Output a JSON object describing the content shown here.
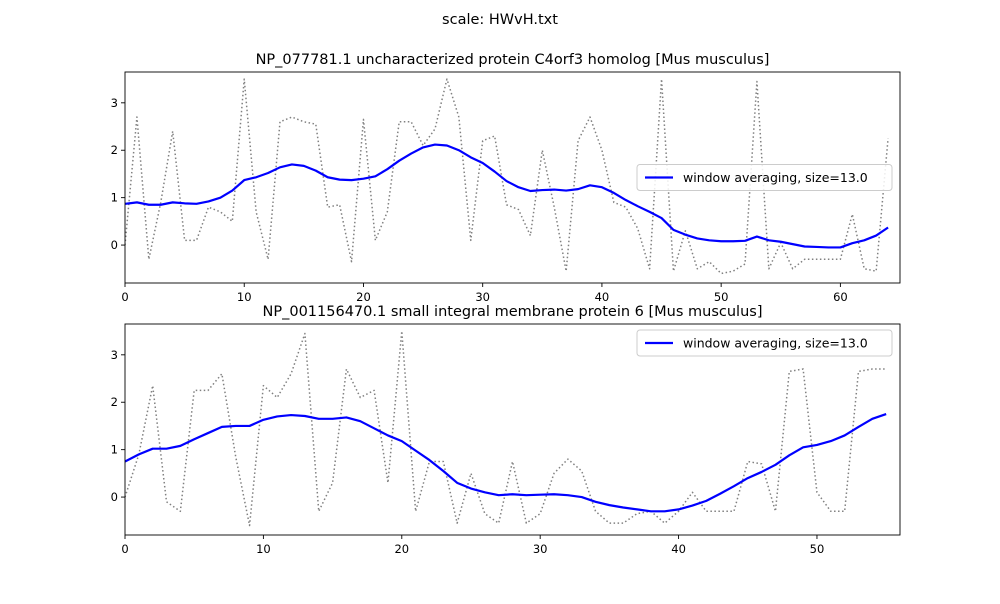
{
  "suptitle": "scale: HWvH.txt",
  "chart_data": [
    {
      "type": "line",
      "title": "NP_077781.1 uncharacterized protein C4orf3 homolog [Mus musculus]",
      "xlim": [
        0,
        65
      ],
      "ylim": [
        -0.8,
        3.65
      ],
      "xticks": [
        0,
        10,
        20,
        30,
        40,
        50,
        60
      ],
      "yticks": [
        0,
        1,
        2,
        3
      ],
      "grid": false,
      "legend_position": "right",
      "series": [
        {
          "name": "",
          "style": "dotted",
          "color": "#808080",
          "x": [
            0,
            1,
            2,
            3,
            4,
            5,
            6,
            7,
            8,
            9,
            10,
            11,
            12,
            13,
            14,
            15,
            16,
            17,
            18,
            19,
            20,
            21,
            22,
            23,
            24,
            25,
            26,
            27,
            28,
            29,
            30,
            31,
            32,
            33,
            34,
            35,
            36,
            37,
            38,
            39,
            40,
            41,
            42,
            43,
            44,
            45,
            46,
            47,
            48,
            49,
            50,
            51,
            52,
            53,
            54,
            55,
            56,
            57,
            58,
            59,
            60,
            61,
            62,
            63,
            64
          ],
          "values": [
            0,
            2.7,
            -0.3,
            0.9,
            2.4,
            0.1,
            0.1,
            0.8,
            0.7,
            0.5,
            3.5,
            0.7,
            -0.3,
            2.6,
            2.7,
            2.6,
            2.55,
            0.8,
            0.85,
            -0.35,
            2.65,
            0.1,
            0.7,
            2.6,
            2.6,
            2.1,
            2.45,
            3.5,
            2.7,
            0.1,
            2.2,
            2.3,
            0.85,
            0.75,
            0.2,
            2.0,
            0.8,
            -0.55,
            2.2,
            2.7,
            2.0,
            0.9,
            0.8,
            0.35,
            -0.5,
            3.5,
            -0.55,
            0.3,
            -0.5,
            -0.35,
            -0.6,
            -0.55,
            -0.4,
            3.45,
            -0.5,
            0.05,
            -0.5,
            -0.3,
            -0.3,
            -0.3,
            -0.3,
            0.65,
            -0.5,
            -0.55,
            2.25
          ]
        },
        {
          "name": "window averaging, size=13.0",
          "style": "solid",
          "color": "#0000ff",
          "x": [
            0,
            1,
            2,
            3,
            4,
            5,
            6,
            7,
            8,
            9,
            10,
            11,
            12,
            13,
            14,
            15,
            16,
            17,
            18,
            19,
            20,
            21,
            22,
            23,
            24,
            25,
            26,
            27,
            28,
            29,
            30,
            31,
            32,
            33,
            34,
            35,
            36,
            37,
            38,
            39,
            40,
            41,
            42,
            43,
            44,
            45,
            46,
            47,
            48,
            49,
            50,
            51,
            52,
            53,
            54,
            55,
            56,
            57,
            58,
            59,
            60,
            61,
            62,
            63,
            64
          ],
          "values": [
            0.87,
            0.9,
            0.85,
            0.85,
            0.9,
            0.88,
            0.87,
            0.92,
            1.0,
            1.15,
            1.37,
            1.43,
            1.52,
            1.64,
            1.7,
            1.67,
            1.57,
            1.43,
            1.38,
            1.37,
            1.4,
            1.45,
            1.6,
            1.78,
            1.93,
            2.06,
            2.12,
            2.1,
            2.0,
            1.85,
            1.73,
            1.55,
            1.35,
            1.22,
            1.14,
            1.16,
            1.17,
            1.15,
            1.18,
            1.26,
            1.22,
            1.1,
            0.95,
            0.82,
            0.7,
            0.57,
            0.32,
            0.22,
            0.14,
            0.1,
            0.08,
            0.08,
            0.09,
            0.18,
            0.1,
            0.07,
            0.02,
            -0.03,
            -0.04,
            -0.05,
            -0.05,
            0.04,
            0.1,
            0.2,
            0.37
          ]
        }
      ]
    },
    {
      "type": "line",
      "title": "NP_001156470.1 small integral membrane protein 6 [Mus musculus]",
      "xlim": [
        0,
        56
      ],
      "ylim": [
        -0.8,
        3.65
      ],
      "xticks": [
        0,
        10,
        20,
        30,
        40,
        50
      ],
      "yticks": [
        0,
        1,
        2,
        3
      ],
      "grid": false,
      "legend_position": "upper right",
      "series": [
        {
          "name": "",
          "style": "dotted",
          "color": "#808080",
          "x": [
            0,
            1,
            2,
            3,
            4,
            5,
            6,
            7,
            8,
            9,
            10,
            11,
            12,
            13,
            14,
            15,
            16,
            17,
            18,
            19,
            20,
            21,
            22,
            23,
            24,
            25,
            26,
            27,
            28,
            29,
            30,
            31,
            32,
            33,
            34,
            35,
            36,
            37,
            38,
            39,
            40,
            41,
            42,
            43,
            44,
            45,
            46,
            47,
            48,
            49,
            50,
            51,
            52,
            53,
            54,
            55
          ],
          "values": [
            0,
            0.9,
            2.35,
            -0.1,
            -0.3,
            2.25,
            2.25,
            2.6,
            0.85,
            -0.6,
            2.35,
            2.1,
            2.6,
            3.45,
            -0.3,
            0.3,
            2.7,
            2.1,
            2.25,
            0.3,
            3.5,
            -0.3,
            0.75,
            0.75,
            -0.55,
            0.5,
            -0.35,
            -0.55,
            0.75,
            -0.55,
            -0.35,
            0.5,
            0.8,
            0.55,
            -0.3,
            -0.55,
            -0.55,
            -0.35,
            -0.3,
            -0.55,
            -0.3,
            0.1,
            -0.3,
            -0.3,
            -0.3,
            0.75,
            0.7,
            -0.3,
            2.65,
            2.7,
            0.1,
            -0.3,
            -0.3,
            2.65,
            2.7,
            2.7
          ]
        },
        {
          "name": "window averaging, size=13.0",
          "style": "solid",
          "color": "#0000ff",
          "x": [
            0,
            1,
            2,
            3,
            4,
            5,
            6,
            7,
            8,
            9,
            10,
            11,
            12,
            13,
            14,
            15,
            16,
            17,
            18,
            19,
            20,
            21,
            22,
            23,
            24,
            25,
            26,
            27,
            28,
            29,
            30,
            31,
            32,
            33,
            34,
            35,
            36,
            37,
            38,
            39,
            40,
            41,
            42,
            43,
            44,
            45,
            46,
            47,
            48,
            49,
            50,
            51,
            52,
            53,
            54,
            55
          ],
          "values": [
            0.75,
            0.9,
            1.02,
            1.02,
            1.08,
            1.22,
            1.35,
            1.48,
            1.5,
            1.5,
            1.63,
            1.7,
            1.73,
            1.71,
            1.65,
            1.65,
            1.68,
            1.6,
            1.45,
            1.3,
            1.18,
            0.98,
            0.78,
            0.55,
            0.3,
            0.18,
            0.1,
            0.04,
            0.06,
            0.04,
            0.05,
            0.06,
            0.04,
            0.0,
            -0.1,
            -0.17,
            -0.22,
            -0.26,
            -0.3,
            -0.3,
            -0.26,
            -0.18,
            -0.08,
            0.07,
            0.23,
            0.4,
            0.53,
            0.68,
            0.88,
            1.05,
            1.1,
            1.18,
            1.3,
            1.48,
            1.65,
            1.75
          ]
        }
      ]
    }
  ]
}
